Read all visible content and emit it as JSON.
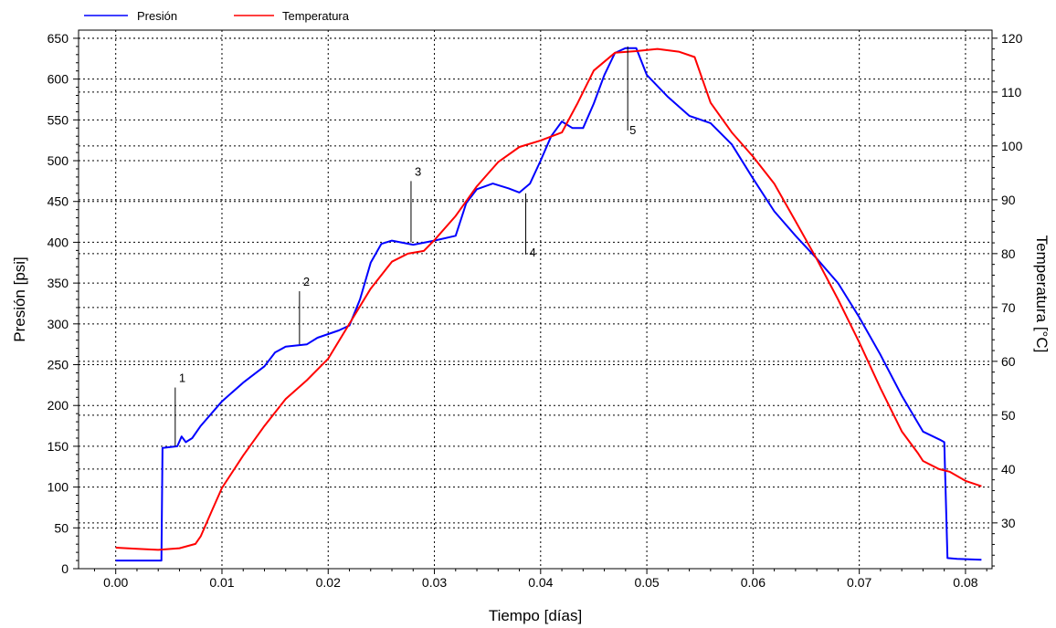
{
  "chart_data": {
    "type": "line",
    "title": "",
    "xlabel": "Tiempo [días]",
    "ylabel": "Presión [psi]",
    "y2label": "Temperatura [°C]",
    "xlim": [
      -0.0035,
      0.0825
    ],
    "ylim": [
      0,
      660
    ],
    "y2lim": [
      21.5,
      121.5
    ],
    "x_ticks": [
      "0.00",
      "0.01",
      "0.02",
      "0.03",
      "0.04",
      "0.05",
      "0.06",
      "0.07",
      "0.08"
    ],
    "y_ticks": [
      "0",
      "50",
      "100",
      "150",
      "200",
      "250",
      "300",
      "350",
      "400",
      "450",
      "500",
      "550",
      "600",
      "650"
    ],
    "y2_ticks": [
      "30",
      "40",
      "50",
      "60",
      "70",
      "80",
      "90",
      "100",
      "110",
      "120"
    ],
    "grid": true,
    "legend_position": "top-left",
    "series": [
      {
        "name": "Presión",
        "axis": "left",
        "color": "#0000ff",
        "points": [
          [
            0.0,
            10
          ],
          [
            0.0043,
            10
          ],
          [
            0.0044,
            148
          ],
          [
            0.0058,
            150
          ],
          [
            0.0062,
            162
          ],
          [
            0.0066,
            155
          ],
          [
            0.0072,
            160
          ],
          [
            0.008,
            175
          ],
          [
            0.01,
            205
          ],
          [
            0.012,
            228
          ],
          [
            0.014,
            248
          ],
          [
            0.015,
            265
          ],
          [
            0.016,
            272
          ],
          [
            0.018,
            275
          ],
          [
            0.019,
            283
          ],
          [
            0.021,
            292
          ],
          [
            0.022,
            298
          ],
          [
            0.023,
            330
          ],
          [
            0.024,
            375
          ],
          [
            0.025,
            398
          ],
          [
            0.026,
            402
          ],
          [
            0.028,
            397
          ],
          [
            0.03,
            402
          ],
          [
            0.032,
            408
          ],
          [
            0.033,
            448
          ],
          [
            0.034,
            465
          ],
          [
            0.0355,
            472
          ],
          [
            0.037,
            466
          ],
          [
            0.038,
            461
          ],
          [
            0.039,
            472
          ],
          [
            0.04,
            500
          ],
          [
            0.041,
            530
          ],
          [
            0.042,
            548
          ],
          [
            0.043,
            540
          ],
          [
            0.044,
            540
          ],
          [
            0.045,
            570
          ],
          [
            0.046,
            605
          ],
          [
            0.047,
            632
          ],
          [
            0.048,
            638
          ],
          [
            0.049,
            638
          ],
          [
            0.05,
            605
          ],
          [
            0.052,
            578
          ],
          [
            0.054,
            555
          ],
          [
            0.056,
            546
          ],
          [
            0.058,
            520
          ],
          [
            0.06,
            478
          ],
          [
            0.062,
            438
          ],
          [
            0.064,
            408
          ],
          [
            0.066,
            380
          ],
          [
            0.068,
            350
          ],
          [
            0.07,
            308
          ],
          [
            0.072,
            262
          ],
          [
            0.074,
            212
          ],
          [
            0.076,
            168
          ],
          [
            0.0776,
            158
          ],
          [
            0.078,
            155
          ],
          [
            0.0783,
            13
          ],
          [
            0.0792,
            12
          ],
          [
            0.0815,
            11
          ]
        ]
      },
      {
        "name": "Temperatura",
        "axis": "right",
        "color": "#ff0000",
        "points": [
          [
            0.0,
            25.4
          ],
          [
            0.002,
            25.2
          ],
          [
            0.004,
            25.0
          ],
          [
            0.006,
            25.3
          ],
          [
            0.0075,
            26.1
          ],
          [
            0.008,
            27.5
          ],
          [
            0.009,
            32
          ],
          [
            0.01,
            36.5
          ],
          [
            0.012,
            42.5
          ],
          [
            0.014,
            48
          ],
          [
            0.016,
            53
          ],
          [
            0.018,
            56.5
          ],
          [
            0.02,
            60.5
          ],
          [
            0.022,
            67
          ],
          [
            0.024,
            73.5
          ],
          [
            0.026,
            78.5
          ],
          [
            0.0275,
            80
          ],
          [
            0.029,
            80.5
          ],
          [
            0.03,
            82.5
          ],
          [
            0.032,
            87
          ],
          [
            0.034,
            92.5
          ],
          [
            0.036,
            97
          ],
          [
            0.038,
            99.8
          ],
          [
            0.04,
            101
          ],
          [
            0.042,
            102.5
          ],
          [
            0.0435,
            108
          ],
          [
            0.045,
            114
          ],
          [
            0.047,
            117.3
          ],
          [
            0.049,
            117.6
          ],
          [
            0.051,
            118
          ],
          [
            0.053,
            117.5
          ],
          [
            0.0545,
            116.5
          ],
          [
            0.056,
            108
          ],
          [
            0.058,
            102.5
          ],
          [
            0.06,
            98
          ],
          [
            0.062,
            93
          ],
          [
            0.064,
            86
          ],
          [
            0.066,
            79
          ],
          [
            0.068,
            71.5
          ],
          [
            0.07,
            63.5
          ],
          [
            0.072,
            55
          ],
          [
            0.074,
            47
          ],
          [
            0.0755,
            43
          ],
          [
            0.076,
            41.5
          ],
          [
            0.0775,
            40
          ],
          [
            0.0785,
            39.5
          ],
          [
            0.08,
            37.8
          ],
          [
            0.0815,
            36.8
          ]
        ]
      }
    ],
    "annotations": [
      {
        "label": "1",
        "x": 0.0056,
        "y": 150,
        "y_top": 222
      },
      {
        "label": "2",
        "x": 0.0173,
        "y": 275,
        "y_top": 340
      },
      {
        "label": "3",
        "x": 0.0278,
        "y": 400,
        "y_top": 475
      },
      {
        "label": "4",
        "x": 0.0386,
        "y": 385,
        "y_top": 460
      },
      {
        "label": "5",
        "x": 0.0482,
        "y": 537,
        "y_top": 640
      }
    ]
  }
}
